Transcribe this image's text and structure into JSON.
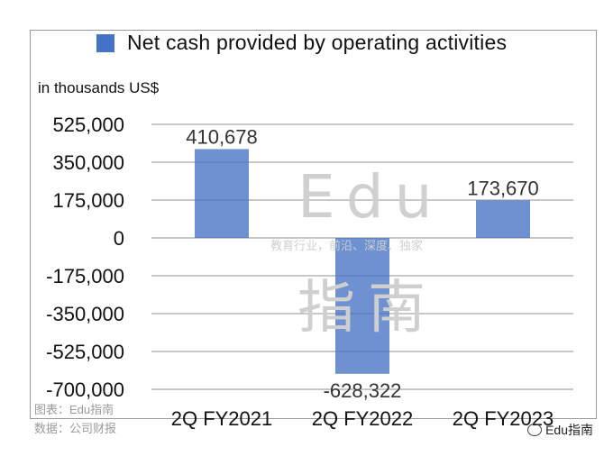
{
  "chart_data": {
    "type": "bar",
    "legend": "Net cash provided by operating activities",
    "unit_label": "in thousands US$",
    "categories": [
      "2Q FY2021",
      "2Q FY2022",
      "2Q FY2023"
    ],
    "values": [
      410678,
      -628322,
      173670
    ],
    "data_labels": [
      "410,678",
      "-628,322",
      "173,670"
    ],
    "ylim": [
      -700000,
      525000
    ],
    "yticks": [
      525000,
      350000,
      175000,
      0,
      -175000,
      -350000,
      -525000,
      -700000
    ],
    "ytick_labels": [
      "525,000",
      "350,000",
      "175,000",
      "0",
      "-175,000",
      "-350,000",
      "-525,000",
      "-700,000"
    ],
    "grid": true,
    "legend_position": "top",
    "bar_color": "#4472c4"
  },
  "watermark": {
    "edu": "Edu",
    "tagline": "教育行业，前沿、深度、独家",
    "chinese": "指南"
  },
  "credits": {
    "chart_source": "图表：Edu指南",
    "data_source": "数据：公司财报"
  },
  "brand": "Edu指南"
}
